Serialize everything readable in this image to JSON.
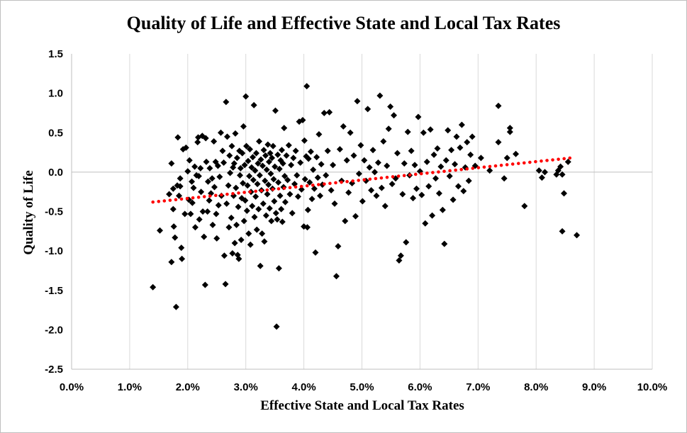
{
  "chart_data": {
    "type": "scatter",
    "title": "Quality of Life and Effective State and Local Tax Rates",
    "xlabel": "Effective State and Local Tax Rates",
    "ylabel": "Quality of Life",
    "xlim": [
      0,
      0.1
    ],
    "ylim": [
      -2.5,
      1.5
    ],
    "x_ticks": [
      "0.0%",
      "1.0%",
      "2.0%",
      "3.0%",
      "4.0%",
      "5.0%",
      "6.0%",
      "7.0%",
      "8.0%",
      "9.0%",
      "10.0%"
    ],
    "y_ticks": [
      "1.5",
      "1.0",
      "0.5",
      "0.0",
      "-0.5",
      "-1.0",
      "-1.5",
      "-2.0",
      "-2.5"
    ],
    "grid": "vertical",
    "marker": "diamond",
    "marker_color": "#000000",
    "trendline": {
      "type": "linear",
      "color": "#ff0000",
      "style": "dotted",
      "x": [
        0.014,
        0.086
      ],
      "y": [
        -0.38,
        0.18
      ]
    },
    "points": [
      [
        0.014,
        -1.46
      ],
      [
        0.0152,
        -0.74
      ],
      [
        0.0168,
        -0.28
      ],
      [
        0.0172,
        -1.14
      ],
      [
        0.0175,
        -0.47
      ],
      [
        0.0176,
        -0.69
      ],
      [
        0.0178,
        -0.83
      ],
      [
        0.018,
        -1.71
      ],
      [
        0.0172,
        0.11
      ],
      [
        0.0175,
        -0.21
      ],
      [
        0.0183,
        0.44
      ],
      [
        0.0185,
        -0.3
      ],
      [
        0.0187,
        -0.18
      ],
      [
        0.0189,
        -0.96
      ],
      [
        0.019,
        -1.1
      ],
      [
        0.0192,
        0.29
      ],
      [
        0.0195,
        -0.53
      ],
      [
        0.0197,
        0.31
      ],
      [
        0.0187,
        -0.08
      ],
      [
        0.0182,
        -0.17
      ],
      [
        0.02,
        0.01
      ],
      [
        0.0202,
        -0.35
      ],
      [
        0.0203,
        0.15
      ],
      [
        0.0205,
        -0.53
      ],
      [
        0.0207,
        -0.12
      ],
      [
        0.0208,
        -0.39
      ],
      [
        0.021,
        -0.2
      ],
      [
        0.0212,
        0.07
      ],
      [
        0.0213,
        -0.7
      ],
      [
        0.0215,
        -0.04
      ],
      [
        0.0217,
        0.38
      ],
      [
        0.0218,
        0.44
      ],
      [
        0.0219,
        -0.05
      ],
      [
        0.022,
        -0.6
      ],
      [
        0.0222,
        0.05
      ],
      [
        0.0223,
        -0.25
      ],
      [
        0.0225,
        0.46
      ],
      [
        0.0226,
        -0.5
      ],
      [
        0.0228,
        -0.82
      ],
      [
        0.023,
        -1.43
      ],
      [
        0.0231,
        0.43
      ],
      [
        0.0232,
        0.13
      ],
      [
        0.0234,
        -0.5
      ],
      [
        0.0235,
        -0.12
      ],
      [
        0.0237,
        -0.36
      ],
      [
        0.0238,
        0.05
      ],
      [
        0.024,
        -0.27
      ],
      [
        0.0242,
        -0.08
      ],
      [
        0.0243,
        -0.67
      ],
      [
        0.0245,
        0.39
      ],
      [
        0.0246,
        -0.19
      ],
      [
        0.0248,
        0.13
      ],
      [
        0.0249,
        -0.53
      ],
      [
        0.025,
        -0.84
      ],
      [
        0.0252,
        0.08
      ],
      [
        0.0253,
        -0.42
      ],
      [
        0.0255,
        -0.06
      ],
      [
        0.0257,
        0.5
      ],
      [
        0.0258,
        -0.3
      ],
      [
        0.026,
        0.27
      ],
      [
        0.0262,
        0.12
      ],
      [
        0.0263,
        -1.06
      ],
      [
        0.0265,
        -1.42
      ],
      [
        0.0266,
        0.89
      ],
      [
        0.0267,
        -0.4
      ],
      [
        0.0268,
        0.45
      ],
      [
        0.027,
        -0.17
      ],
      [
        0.0271,
        -0.7
      ],
      [
        0.0272,
        0.21
      ],
      [
        0.0273,
        -0.01
      ],
      [
        0.0275,
        -0.58
      ],
      [
        0.0276,
        0.33
      ],
      [
        0.0277,
        -1.03
      ],
      [
        0.0278,
        0.06
      ],
      [
        0.0279,
        -0.3
      ],
      [
        0.028,
        0.11
      ],
      [
        0.0281,
        -0.9
      ],
      [
        0.0282,
        0.49
      ],
      [
        0.0283,
        -0.2
      ],
      [
        0.0284,
        -0.67
      ],
      [
        0.0285,
        0.18
      ],
      [
        0.0286,
        -1.05
      ],
      [
        0.0287,
        -0.44
      ],
      [
        0.0288,
        -1.1
      ],
      [
        0.0289,
        0.27
      ],
      [
        0.029,
        -0.04
      ],
      [
        0.0291,
        0.05
      ],
      [
        0.0292,
        -0.86
      ],
      [
        0.0293,
        -0.33
      ],
      [
        0.0294,
        0.24
      ],
      [
        0.0295,
        -0.14
      ],
      [
        0.0296,
        0.58
      ],
      [
        0.0297,
        -0.62
      ],
      [
        0.0298,
        0.09
      ],
      [
        0.0299,
        -0.36
      ],
      [
        0.03,
        0.96
      ],
      [
        0.0301,
        0.33
      ],
      [
        0.0302,
        -0.49
      ],
      [
        0.0303,
        -0.17
      ],
      [
        0.0304,
        0.14
      ],
      [
        0.0305,
        -0.78
      ],
      [
        0.0306,
        -0.05
      ],
      [
        0.0307,
        0.29
      ],
      [
        0.0308,
        -0.92
      ],
      [
        0.0309,
        -0.25
      ],
      [
        0.031,
        0.06
      ],
      [
        0.0311,
        -0.43
      ],
      [
        0.0312,
        0.19
      ],
      [
        0.0313,
        -0.1
      ],
      [
        0.0314,
        0.85
      ],
      [
        0.0315,
        -0.57
      ],
      [
        0.0316,
        0.02
      ],
      [
        0.0317,
        -0.31
      ],
      [
        0.0318,
        0.24
      ],
      [
        0.0319,
        -0.73
      ],
      [
        0.032,
        -0.15
      ],
      [
        0.0321,
        0.11
      ],
      [
        0.0322,
        -0.47
      ],
      [
        0.0323,
        0.39
      ],
      [
        0.0324,
        -0.04
      ],
      [
        0.0325,
        -1.19
      ],
      [
        0.0326,
        0.16
      ],
      [
        0.0327,
        -0.23
      ],
      [
        0.0328,
        -0.78
      ],
      [
        0.0329,
        0.08
      ],
      [
        0.033,
        -0.4
      ],
      [
        0.0331,
        0.28
      ],
      [
        0.0332,
        -0.88
      ],
      [
        0.0333,
        -0.11
      ],
      [
        0.0334,
        0.21
      ],
      [
        0.0335,
        -0.55
      ],
      [
        0.0336,
        0.03
      ],
      [
        0.0337,
        -0.28
      ],
      [
        0.0338,
        0.35
      ],
      [
        0.0339,
        -0.16
      ],
      [
        0.034,
        0.13
      ],
      [
        0.0341,
        -0.46
      ],
      [
        0.0342,
        0.24
      ],
      [
        0.0343,
        -0.02
      ],
      [
        0.0344,
        -0.62
      ],
      [
        0.0345,
        0.18
      ],
      [
        0.0346,
        -0.21
      ],
      [
        0.0347,
        0.33
      ],
      [
        0.0348,
        -0.09
      ],
      [
        0.0349,
        -0.37
      ],
      [
        0.035,
        0.07
      ],
      [
        0.0351,
        0.78
      ],
      [
        0.0352,
        -0.52
      ],
      [
        0.0353,
        -1.96
      ],
      [
        0.0354,
        -0.6
      ],
      [
        0.0355,
        0.22
      ],
      [
        0.0356,
        -0.13
      ],
      [
        0.0357,
        -1.22
      ],
      [
        0.0358,
        0.04
      ],
      [
        0.0359,
        -0.3
      ],
      [
        0.036,
        0.15
      ],
      [
        0.0361,
        -0.47
      ],
      [
        0.0362,
        0.28
      ],
      [
        0.0363,
        -0.63
      ],
      [
        0.0364,
        0.11
      ],
      [
        0.0365,
        -0.19
      ],
      [
        0.0366,
        0.56
      ],
      [
        0.0367,
        -0.05
      ],
      [
        0.0368,
        -0.38
      ],
      [
        0.037,
        0.21
      ],
      [
        0.0372,
        -0.1
      ],
      [
        0.0374,
        0.34
      ],
      [
        0.0376,
        -0.28
      ],
      [
        0.0378,
        0.09
      ],
      [
        0.038,
        -0.52
      ],
      [
        0.0382,
        0.18
      ],
      [
        0.0384,
        -0.15
      ],
      [
        0.0386,
        0.27
      ],
      [
        0.0388,
        -0.04
      ],
      [
        0.039,
        -0.31
      ],
      [
        0.0392,
        0.64
      ],
      [
        0.0394,
        0.12
      ],
      [
        0.0396,
        -0.22
      ],
      [
        0.0398,
        0.66
      ],
      [
        0.04,
        -0.69
      ],
      [
        0.0401,
        0.4
      ],
      [
        0.0402,
        -0.09
      ],
      [
        0.0404,
        0.2
      ],
      [
        0.0405,
        1.09
      ],
      [
        0.0406,
        -0.7
      ],
      [
        0.0407,
        -0.48
      ],
      [
        0.0408,
        0.17
      ],
      [
        0.041,
        -0.13
      ],
      [
        0.0412,
        0.26
      ],
      [
        0.0414,
        -0.34
      ],
      [
        0.0416,
        0.03
      ],
      [
        0.0418,
        -0.21
      ],
      [
        0.042,
        -1.02
      ],
      [
        0.0422,
        0.19
      ],
      [
        0.0424,
        -0.07
      ],
      [
        0.0426,
        0.48
      ],
      [
        0.0428,
        -0.3
      ],
      [
        0.043,
        0.1
      ],
      [
        0.0432,
        -0.16
      ],
      [
        0.0435,
        0.75
      ],
      [
        0.0438,
        -0.04
      ],
      [
        0.0441,
        0.27
      ],
      [
        0.0444,
        0.76
      ],
      [
        0.0447,
        -0.23
      ],
      [
        0.045,
        0.09
      ],
      [
        0.0453,
        -0.4
      ],
      [
        0.0456,
        -1.32
      ],
      [
        0.0459,
        -0.94
      ],
      [
        0.0462,
        0.29
      ],
      [
        0.0465,
        -0.11
      ],
      [
        0.0468,
        0.58
      ],
      [
        0.0471,
        -0.62
      ],
      [
        0.0474,
        0.15
      ],
      [
        0.0477,
        -0.26
      ],
      [
        0.048,
        0.5
      ],
      [
        0.0483,
        -0.14
      ],
      [
        0.0486,
        0.21
      ],
      [
        0.0489,
        -0.56
      ],
      [
        0.0492,
        0.9
      ],
      [
        0.0495,
        -0.02
      ],
      [
        0.0498,
        0.34
      ],
      [
        0.0501,
        -0.37
      ],
      [
        0.0504,
        0.15
      ],
      [
        0.0507,
        -0.11
      ],
      [
        0.051,
        0.8
      ],
      [
        0.0513,
        0.06
      ],
      [
        0.0516,
        -0.23
      ],
      [
        0.0519,
        0.28
      ],
      [
        0.0522,
        0.0
      ],
      [
        0.0525,
        -0.3
      ],
      [
        0.0528,
        0.12
      ],
      [
        0.0531,
        0.97
      ],
      [
        0.0534,
        -0.2
      ],
      [
        0.0537,
        0.39
      ],
      [
        0.054,
        -0.43
      ],
      [
        0.0543,
        0.08
      ],
      [
        0.0546,
        0.55
      ],
      [
        0.0549,
        0.83
      ],
      [
        0.0552,
        -0.15
      ],
      [
        0.0555,
        0.72
      ],
      [
        0.0558,
        -0.08
      ],
      [
        0.0561,
        0.24
      ],
      [
        0.0564,
        -1.12
      ],
      [
        0.0567,
        -1.06
      ],
      [
        0.057,
        -0.28
      ],
      [
        0.0573,
        0.11
      ],
      [
        0.0576,
        -0.89
      ],
      [
        0.0579,
        0.51
      ],
      [
        0.0582,
        -0.04
      ],
      [
        0.0585,
        0.27
      ],
      [
        0.0588,
        -0.33
      ],
      [
        0.0591,
        0.09
      ],
      [
        0.0594,
        -0.21
      ],
      [
        0.0597,
        0.7
      ],
      [
        0.06,
        0.01
      ],
      [
        0.0603,
        -0.29
      ],
      [
        0.0606,
        0.5
      ],
      [
        0.0609,
        -0.65
      ],
      [
        0.0612,
        0.13
      ],
      [
        0.0615,
        -0.18
      ],
      [
        0.0618,
        0.54
      ],
      [
        0.0621,
        -0.55
      ],
      [
        0.0624,
        0.22
      ],
      [
        0.0627,
        -0.08
      ],
      [
        0.063,
        0.3
      ],
      [
        0.0633,
        -0.27
      ],
      [
        0.0636,
        0.07
      ],
      [
        0.0639,
        -0.48
      ],
      [
        0.0642,
        -0.91
      ],
      [
        0.0645,
        0.15
      ],
      [
        0.0648,
        0.53
      ],
      [
        0.0651,
        -0.05
      ],
      [
        0.0654,
        0.28
      ],
      [
        0.0657,
        -0.35
      ],
      [
        0.066,
        0.1
      ],
      [
        0.0663,
        0.45
      ],
      [
        0.0666,
        -0.18
      ],
      [
        0.0669,
        0.31
      ],
      [
        0.0672,
        0.6
      ],
      [
        0.0675,
        -0.24
      ],
      [
        0.0678,
        0.06
      ],
      [
        0.0681,
        0.38
      ],
      [
        0.0684,
        -0.11
      ],
      [
        0.0687,
        0.22
      ],
      [
        0.069,
        0.45
      ],
      [
        0.0695,
        0.08
      ],
      [
        0.0705,
        0.18
      ],
      [
        0.072,
        0.02
      ],
      [
        0.0735,
        0.38
      ],
      [
        0.0735,
        0.84
      ],
      [
        0.0745,
        -0.08
      ],
      [
        0.075,
        0.18
      ],
      [
        0.0755,
        0.56
      ],
      [
        0.0755,
        0.51
      ],
      [
        0.0765,
        0.23
      ],
      [
        0.078,
        -0.43
      ],
      [
        0.0805,
        0.02
      ],
      [
        0.081,
        -0.07
      ],
      [
        0.0815,
        0.0
      ],
      [
        0.0835,
        -0.03
      ],
      [
        0.0838,
        0.02
      ],
      [
        0.0842,
        0.07
      ],
      [
        0.0845,
        -0.75
      ],
      [
        0.0848,
        -0.27
      ],
      [
        0.0855,
        0.13
      ],
      [
        0.087,
        -0.8
      ],
      [
        0.0845,
        -0.03
      ]
    ]
  }
}
